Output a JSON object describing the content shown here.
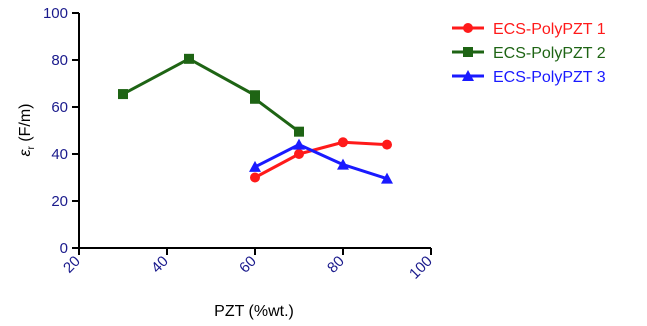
{
  "chart_data": {
    "type": "line",
    "xlabel": "PZT (%wt.)",
    "ylabel": "ε_r (F/m)",
    "ylabel_main": "ε",
    "ylabel_sub": "r",
    "ylabel_unit": " (F/m)",
    "xlim": [
      20,
      100
    ],
    "ylim": [
      0,
      100
    ],
    "xticks": [
      20,
      40,
      60,
      80,
      100
    ],
    "yticks": [
      0,
      20,
      40,
      60,
      80,
      100
    ],
    "xtick_labels": [
      "20",
      "40",
      "60",
      "80",
      "100"
    ],
    "ytick_labels": [
      "0",
      "20",
      "40",
      "60",
      "80",
      "100"
    ],
    "grid": false,
    "legend_position": "top-right",
    "series": [
      {
        "name": "ECS-PolyPZT 1",
        "color": "#ff1a1a",
        "marker": "circle",
        "points": [
          [
            60,
            30
          ],
          [
            70,
            40
          ],
          [
            80,
            45
          ],
          [
            90,
            44
          ]
        ]
      },
      {
        "name": "ECS-PolyPZT 2",
        "color": "#1e6414",
        "marker": "square",
        "points": [
          [
            30,
            65.5
          ],
          [
            45,
            80.5
          ],
          [
            60,
            65
          ],
          [
            60,
            63.5
          ],
          [
            70,
            49.5
          ]
        ]
      },
      {
        "name": "ECS-PolyPZT 3",
        "color": "#1a1aff",
        "marker": "triangle",
        "points": [
          [
            60,
            34.5
          ],
          [
            70,
            44
          ],
          [
            80,
            35.5
          ],
          [
            90,
            29.5
          ]
        ]
      }
    ]
  }
}
